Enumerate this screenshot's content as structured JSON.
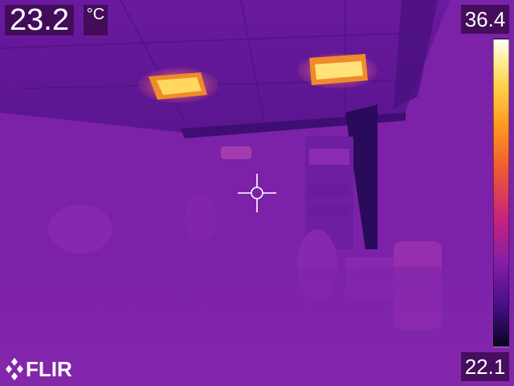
{
  "spot_temperature": "23.2",
  "unit": "°C",
  "scale": {
    "max": "36.4",
    "min": "22.1"
  },
  "palette": "iron",
  "brand": "FLIR",
  "icons": {
    "crosshair": "spot-meter-crosshair-icon",
    "logo": "flir-diamond-logo"
  },
  "colors": {
    "label_background": "#3c0a50",
    "text": "#ffffff",
    "hot": "#ffdf5a",
    "cold": "#0a0320"
  }
}
